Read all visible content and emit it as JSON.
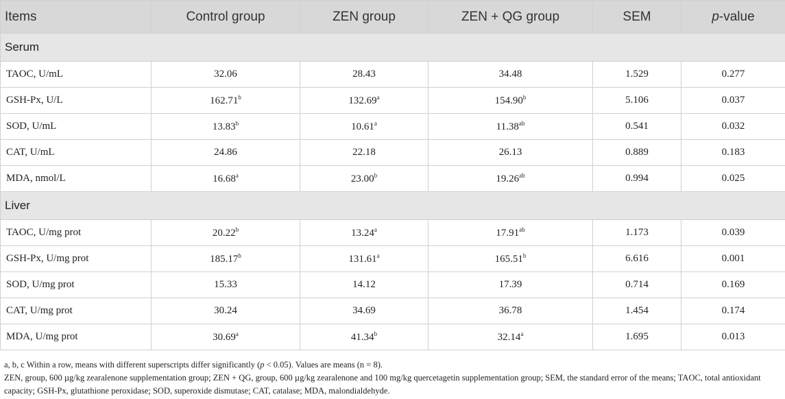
{
  "table": {
    "header": [
      "Items",
      "Control group",
      "ZEN group",
      "ZEN + QG group",
      "SEM"
    ],
    "pvalue_header": {
      "italic": "p",
      "text": "-value"
    },
    "sections": [
      {
        "title": "Serum",
        "rows": [
          {
            "item": "TAOC, U/mL",
            "cells": [
              {
                "value": "32.06"
              },
              {
                "value": "28.43"
              },
              {
                "value": "34.48"
              },
              {
                "value": "1.529"
              },
              {
                "value": "0.277"
              }
            ]
          },
          {
            "item": "GSH-Px, U/L",
            "cells": [
              {
                "value": "162.71",
                "sup": "b"
              },
              {
                "value": "132.69",
                "sup": "a"
              },
              {
                "value": "154.90",
                "sup": "b"
              },
              {
                "value": "5.106"
              },
              {
                "value": "0.037"
              }
            ]
          },
          {
            "item": "SOD, U/mL",
            "cells": [
              {
                "value": "13.83",
                "sup": "b"
              },
              {
                "value": "10.61",
                "sup": "a"
              },
              {
                "value": "11.38",
                "sup": "ab"
              },
              {
                "value": "0.541"
              },
              {
                "value": "0.032"
              }
            ]
          },
          {
            "item": "CAT, U/mL",
            "cells": [
              {
                "value": "24.86"
              },
              {
                "value": "22.18"
              },
              {
                "value": "26.13"
              },
              {
                "value": "0.889"
              },
              {
                "value": "0.183"
              }
            ]
          },
          {
            "item": "MDA, nmol/L",
            "cells": [
              {
                "value": "16.68",
                "sup": "a"
              },
              {
                "value": "23.00",
                "sup": "b"
              },
              {
                "value": "19.26",
                "sup": "ab"
              },
              {
                "value": "0.994"
              },
              {
                "value": "0.025"
              }
            ]
          }
        ]
      },
      {
        "title": "Liver",
        "rows": [
          {
            "item": "TAOC, U/mg prot",
            "cells": [
              {
                "value": "20.22",
                "sup": "b"
              },
              {
                "value": "13.24",
                "sup": "a"
              },
              {
                "value": "17.91",
                "sup": "ab"
              },
              {
                "value": "1.173"
              },
              {
                "value": "0.039"
              }
            ]
          },
          {
            "item": "GSH-Px, U/mg prot",
            "cells": [
              {
                "value": "185.17",
                "sup": "b"
              },
              {
                "value": "131.61",
                "sup": "a"
              },
              {
                "value": "165.51",
                "sup": "b"
              },
              {
                "value": "6.616"
              },
              {
                "value": "0.001"
              }
            ]
          },
          {
            "item": "SOD, U/mg prot",
            "cells": [
              {
                "value": "15.33"
              },
              {
                "value": "14.12"
              },
              {
                "value": "17.39"
              },
              {
                "value": "0.714"
              },
              {
                "value": "0.169"
              }
            ]
          },
          {
            "item": "CAT, U/mg prot",
            "cells": [
              {
                "value": "30.24"
              },
              {
                "value": "34.69"
              },
              {
                "value": "36.78"
              },
              {
                "value": "1.454"
              },
              {
                "value": "0.174"
              }
            ]
          },
          {
            "item": "MDA, U/mg prot",
            "cells": [
              {
                "value": "30.69",
                "sup": "a"
              },
              {
                "value": "41.34",
                "sup": "b"
              },
              {
                "value": "32.14",
                "sup": "a"
              },
              {
                "value": "1.695"
              },
              {
                "value": "0.013"
              }
            ]
          }
        ]
      }
    ]
  },
  "footnotes": [
    [
      "a, b, c Within a row, means with different superscripts differ significantly (",
      "p",
      " < 0.05). Values are means (n = 8)."
    ],
    [
      "ZEN, group, 600 µg/kg zearalenone supplementation group; ZEN + QG, group, 600 µg/kg zearalenone and 100 mg/kg quercetagetin supplementation group; SEM, the standard error of the means; TAOC, total antioxidant capacity; GSH-Px, glutathione peroxidase; SOD, superoxide dismutase; CAT, catalase; MDA, malondialdehyde."
    ]
  ]
}
